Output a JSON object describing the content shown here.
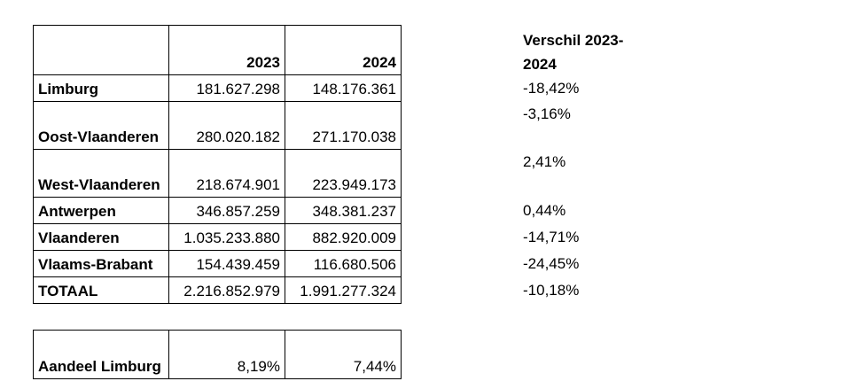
{
  "main_table": {
    "headers": [
      "",
      "2023",
      "2024"
    ],
    "rows": [
      {
        "region": "Limburg",
        "y2023": "181.627.298",
        "y2024": "148.176.361"
      },
      {
        "region": "Oost-Vlaanderen",
        "y2023": "280.020.182",
        "y2024": "271.170.038"
      },
      {
        "region": "West-Vlaanderen",
        "y2023": "218.674.901",
        "y2024": "223.949.173"
      },
      {
        "region": "Antwerpen",
        "y2023": "346.857.259",
        "y2024": "348.381.237"
      },
      {
        "region": "Vlaanderen",
        "y2023": "1.035.233.880",
        "y2024": "882.920.009"
      },
      {
        "region": "Vlaams-Brabant",
        "y2023": "154.439.459",
        "y2024": "116.680.506"
      },
      {
        "region": "TOTAAL",
        "y2023": "2.216.852.979",
        "y2024": "1.991.277.324"
      }
    ]
  },
  "difference": {
    "header_line1": "Verschil 2023-",
    "header_line2": "2024",
    "values": [
      "-18,42%",
      "-3,16%",
      "2,41%",
      "0,44%",
      "-14,71%",
      "-24,45%",
      "-10,18%"
    ]
  },
  "share_table": {
    "label": "Aandeel Limburg",
    "y2023": "8,19%",
    "y2024": "7,44%"
  }
}
